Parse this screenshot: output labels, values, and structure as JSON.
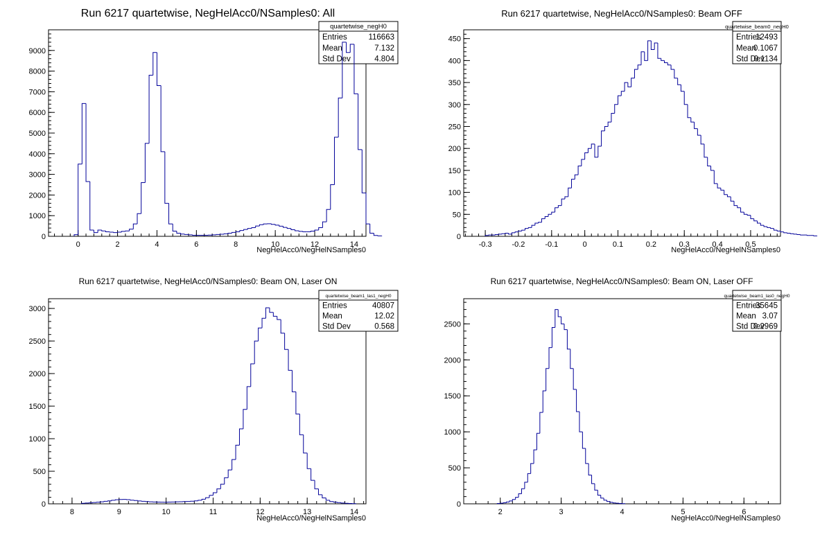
{
  "chart_data": [
    {
      "type": "bar",
      "title": "Run 6217 quartetwise, NegHelAcc0/NSamples0: All",
      "xlabel": "NegHelAcc0/NegHelNSamples0",
      "ylabel": "",
      "xlim": [
        -1.5,
        14.6
      ],
      "ylim": [
        0,
        10000
      ],
      "xticks": [
        0,
        2,
        4,
        6,
        8,
        10,
        12,
        14
      ],
      "yticks": [
        0,
        1000,
        2000,
        3000,
        4000,
        5000,
        6000,
        7000,
        8000,
        9000
      ],
      "grid": false,
      "legend": "top-right",
      "stats": {
        "name": "quartetwise_negH0",
        "rows": [
          {
            "label": "Entries",
            "value": "116663"
          },
          {
            "label": "Mean",
            "value": "7.132"
          },
          {
            "label": "Std Dev",
            "value": "4.804"
          }
        ]
      },
      "bin_start": -0.2,
      "bin_width": 0.2,
      "values": [
        80,
        3500,
        6430,
        2650,
        300,
        180,
        300,
        260,
        220,
        200,
        180,
        200,
        240,
        260,
        350,
        600,
        1100,
        2600,
        4500,
        7800,
        8900,
        7300,
        4100,
        1600,
        600,
        250,
        150,
        110,
        90,
        70,
        50,
        50,
        50,
        50,
        60,
        70,
        90,
        100,
        120,
        150,
        190,
        220,
        280,
        330,
        380,
        420,
        500,
        560,
        600,
        610,
        580,
        540,
        490,
        430,
        380,
        320,
        270,
        240,
        220,
        220,
        250,
        300,
        420,
        700,
        1300,
        2500,
        4800,
        6700,
        9400,
        8900,
        9300,
        6900,
        4200,
        2100,
        600,
        150,
        40,
        20
      ]
    },
    {
      "type": "bar",
      "title": "Run 6217 quartetwise, NegHelAcc0/NSamples0: Beam OFF",
      "xlabel": "NegHelAcc0/NegHelNSamples0",
      "ylabel": "",
      "xlim": [
        -0.365,
        0.59
      ],
      "ylim": [
        0,
        470
      ],
      "xticks": [
        -0.3,
        -0.2,
        -0.1,
        0,
        0.1,
        0.2,
        0.3,
        0.4,
        0.5
      ],
      "yticks": [
        0,
        50,
        100,
        150,
        200,
        250,
        300,
        350,
        400,
        450
      ],
      "grid": false,
      "legend": "top-right",
      "stats": {
        "name": "quartetwise_beam0_negH0",
        "rows": [
          {
            "label": "Entries",
            "value": "12493"
          },
          {
            "label": "Mean",
            "value": "0.1067"
          },
          {
            "label": "Std Dev",
            "value": "0.1134"
          }
        ]
      },
      "bin_start": -0.3,
      "bin_width": 0.01,
      "values": [
        2,
        3,
        3,
        4,
        5,
        6,
        7,
        5,
        8,
        10,
        12,
        14,
        18,
        20,
        25,
        30,
        32,
        40,
        45,
        50,
        55,
        65,
        70,
        85,
        90,
        110,
        130,
        140,
        160,
        175,
        190,
        200,
        210,
        180,
        205,
        240,
        250,
        260,
        280,
        300,
        320,
        330,
        350,
        340,
        360,
        380,
        390,
        420,
        400,
        445,
        425,
        440,
        405,
        400,
        395,
        390,
        380,
        360,
        345,
        330,
        300,
        270,
        260,
        245,
        230,
        210,
        180,
        160,
        150,
        120,
        110,
        105,
        95,
        90,
        80,
        70,
        65,
        55,
        50,
        48,
        40,
        35,
        30,
        25,
        22,
        20,
        18,
        14,
        12,
        10,
        8,
        7,
        6,
        5,
        4,
        3,
        3,
        2,
        2,
        1
      ]
    },
    {
      "type": "bar",
      "title": "Run 6217 quartetwise, NegHelAcc0/NSamples0: Beam ON, Laser ON",
      "xlabel": "NegHelAcc0/NegHelNSamples0",
      "ylabel": "",
      "xlim": [
        7.5,
        14.25
      ],
      "ylim": [
        0,
        3150
      ],
      "xticks": [
        8,
        9,
        10,
        11,
        12,
        13,
        14
      ],
      "yticks": [
        0,
        500,
        1000,
        1500,
        2000,
        2500,
        3000
      ],
      "grid": false,
      "legend": "top-right",
      "stats": {
        "name": "quartetwise_beam1_las1_negH0",
        "rows": [
          {
            "label": "Entries",
            "value": "40807"
          },
          {
            "label": "Mean",
            "value": "12.02"
          },
          {
            "label": "Std Dev",
            "value": "0.568"
          }
        ]
      },
      "bin_start": 8.2,
      "bin_width": 0.08,
      "values": [
        8,
        12,
        15,
        20,
        25,
        30,
        38,
        45,
        55,
        62,
        66,
        68,
        64,
        56,
        50,
        44,
        38,
        35,
        30,
        28,
        26,
        25,
        24,
        26,
        28,
        30,
        32,
        34,
        36,
        40,
        45,
        55,
        70,
        95,
        130,
        170,
        230,
        300,
        400,
        520,
        680,
        900,
        1150,
        1450,
        1800,
        2150,
        2500,
        2700,
        2850,
        3010,
        2940,
        2880,
        2830,
        2620,
        2370,
        2050,
        1720,
        1380,
        1060,
        780,
        540,
        360,
        230,
        140,
        90,
        55,
        35,
        25,
        18,
        12,
        8,
        5,
        3
      ]
    },
    {
      "type": "bar",
      "title": "Run 6217 quartetwise, NegHelAcc0/NSamples0: Beam ON, Laser OFF",
      "xlabel": "NegHelAcc0/NegHelNSamples0",
      "ylabel": "",
      "xlim": [
        1.4,
        6.6
      ],
      "ylim": [
        0,
        2850
      ],
      "xticks": [
        2,
        3,
        4,
        5,
        6
      ],
      "yticks": [
        0,
        500,
        1000,
        1500,
        2000,
        2500
      ],
      "grid": false,
      "legend": "top-right",
      "stats": {
        "name": "quartetwise_beam1_las0_negH0",
        "rows": [
          {
            "label": "Entries",
            "value": "35645"
          },
          {
            "label": "Mean",
            "value": "3.07"
          },
          {
            "label": "Std Dev",
            "value": "0.2969"
          }
        ]
      },
      "bin_start": 1.95,
      "bin_width": 0.05,
      "values": [
        5,
        8,
        15,
        25,
        40,
        60,
        90,
        140,
        210,
        300,
        420,
        560,
        750,
        980,
        1270,
        1570,
        1880,
        2170,
        2450,
        2700,
        2600,
        2500,
        2420,
        2150,
        1880,
        1590,
        1280,
        1000,
        770,
        560,
        400,
        280,
        190,
        120,
        80,
        50,
        32,
        20,
        12,
        8,
        5,
        3
      ]
    }
  ]
}
